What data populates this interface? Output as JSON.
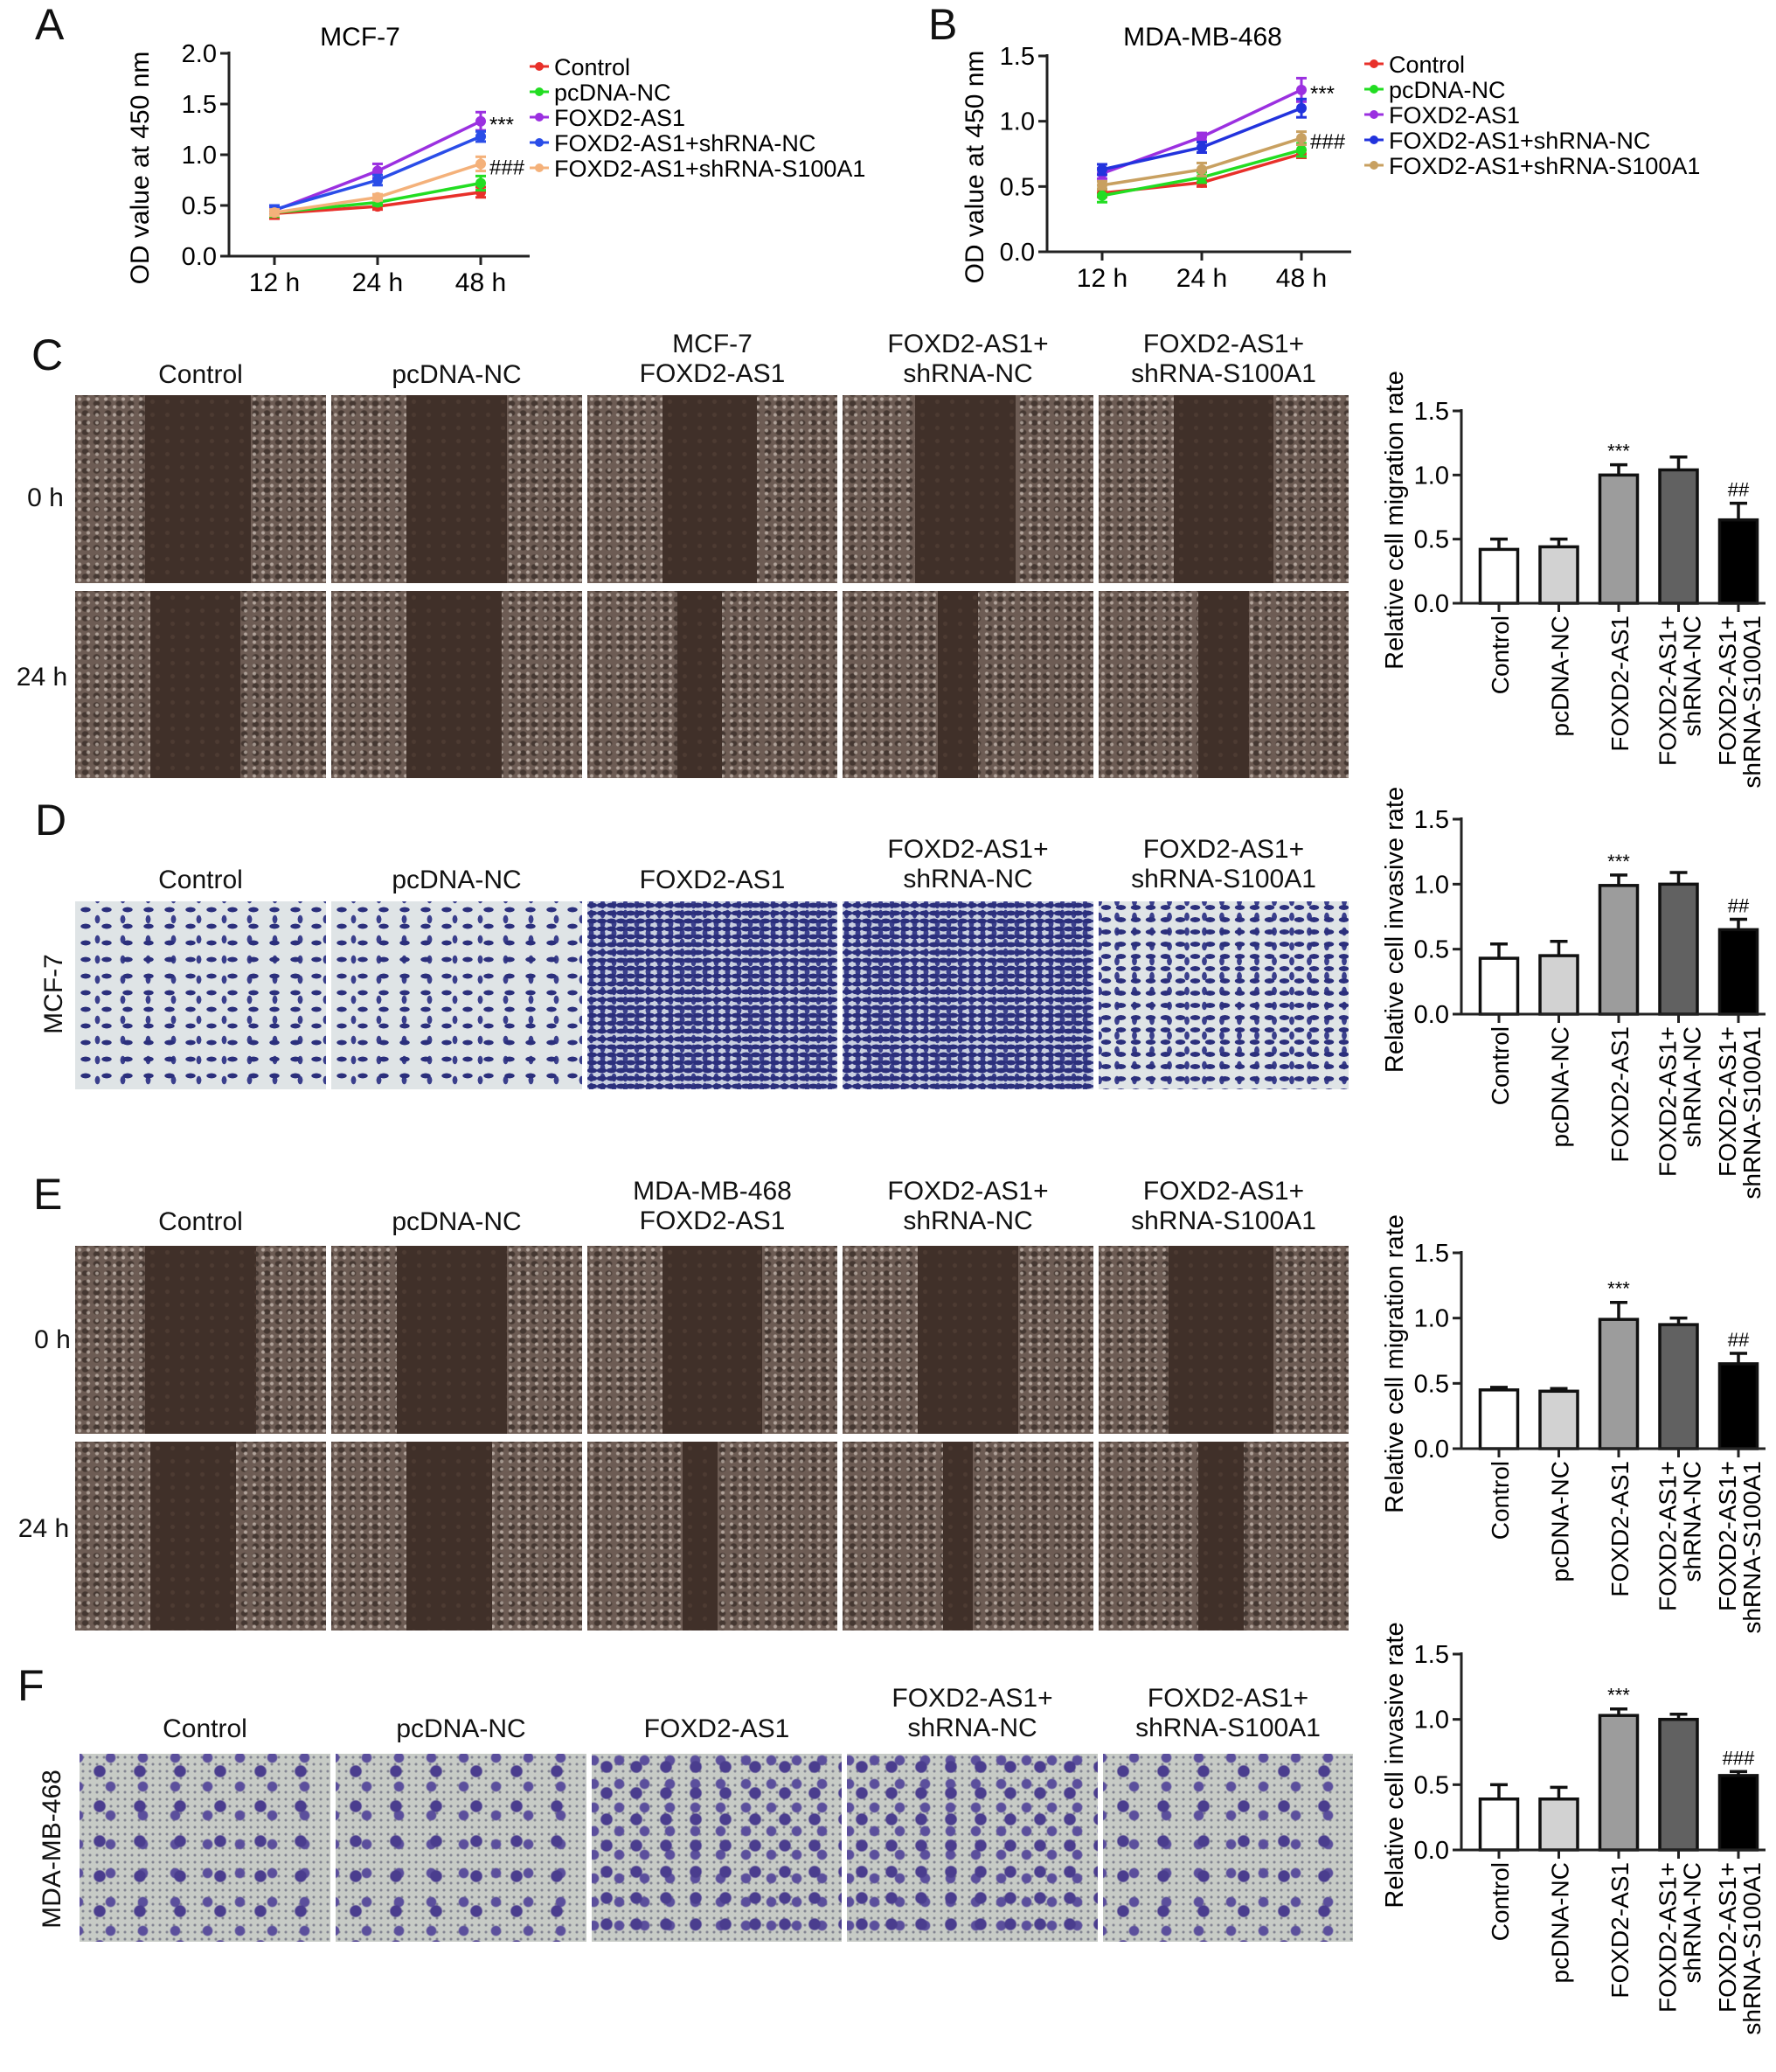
{
  "panel_letters": {
    "A": "A",
    "B": "B",
    "C": "C",
    "D": "D",
    "E": "E",
    "F": "F"
  },
  "photo_panels": [
    {
      "id": "C",
      "headers": [
        [
          "Control"
        ],
        [
          "pcDNA-NC"
        ],
        [
          "MCF-7",
          "FOXD2-AS1"
        ],
        [
          "FOXD2-AS1+",
          "shRNA-NC"
        ],
        [
          "FOXD2-AS1+",
          "shRNA-S100A1"
        ]
      ],
      "row_labels": [
        "0 h",
        "24 h"
      ],
      "side_label": ""
    },
    {
      "id": "D",
      "headers": [
        [
          "Control"
        ],
        [
          "pcDNA-NC"
        ],
        [
          "FOXD2-AS1"
        ],
        [
          "FOXD2-AS1+",
          "shRNA-NC"
        ],
        [
          "FOXD2-AS1+",
          "shRNA-S100A1"
        ]
      ],
      "row_labels": [],
      "side_label": "MCF-7"
    },
    {
      "id": "E",
      "headers": [
        [
          "Control"
        ],
        [
          "pcDNA-NC"
        ],
        [
          "MDA-MB-468",
          "FOXD2-AS1"
        ],
        [
          "FOXD2-AS1+",
          "shRNA-NC"
        ],
        [
          "FOXD2-AS1+",
          "shRNA-S100A1"
        ]
      ],
      "row_labels": [
        "0 h",
        "24 h"
      ],
      "side_label": ""
    },
    {
      "id": "F",
      "headers": [
        [
          "Control"
        ],
        [
          "pcDNA-NC"
        ],
        [
          "FOXD2-AS1"
        ],
        [
          "FOXD2-AS1+",
          "shRNA-NC"
        ],
        [
          "FOXD2-AS1+",
          "shRNA-S100A1"
        ]
      ],
      "row_labels": [],
      "side_label": "MDA-MB-468"
    }
  ],
  "chart_data": [
    {
      "id": "A",
      "type": "line",
      "title": "MCF-7",
      "xlabel": "",
      "ylabel": "OD value at 450 nm",
      "ylim": [
        0,
        2.0
      ],
      "yticks": [
        0,
        0.5,
        1.0,
        1.5,
        2.0
      ],
      "categories": [
        "12 h",
        "24 h",
        "48 h"
      ],
      "series": [
        {
          "name": "Control",
          "color": "#e8302a",
          "values": [
            0.42,
            0.49,
            0.63
          ],
          "errors": [
            0.05,
            0.03,
            0.05
          ]
        },
        {
          "name": "pcDNA-NC",
          "color": "#22dd22",
          "values": [
            0.43,
            0.53,
            0.72
          ],
          "errors": [
            0.04,
            0.03,
            0.07
          ]
        },
        {
          "name": "FOXD2-AS1",
          "color": "#9b30e0",
          "values": [
            0.45,
            0.84,
            1.33
          ],
          "errors": [
            0.04,
            0.07,
            0.09
          ]
        },
        {
          "name": "FOXD2-AS1+shRNA-NC",
          "color": "#2a4de8",
          "values": [
            0.46,
            0.75,
            1.18
          ],
          "errors": [
            0.04,
            0.05,
            0.05
          ]
        },
        {
          "name": "FOXD2-AS1+shRNA-S100A1",
          "color": "#f4b17a",
          "values": [
            0.43,
            0.58,
            0.91
          ],
          "errors": [
            0.03,
            0.03,
            0.07
          ]
        }
      ],
      "annotations": [
        {
          "text": "***",
          "series": "FOXD2-AS1",
          "category": "48 h"
        },
        {
          "text": "###",
          "series": "FOXD2-AS1+shRNA-S100A1",
          "category": "48 h"
        }
      ],
      "legend": "right"
    },
    {
      "id": "B",
      "type": "line",
      "title": "MDA-MB-468",
      "xlabel": "",
      "ylabel": "OD value at 450 nm",
      "ylim": [
        0,
        1.5
      ],
      "yticks": [
        0,
        0.5,
        1.0,
        1.5
      ],
      "categories": [
        "12 h",
        "24 h",
        "48 h"
      ],
      "series": [
        {
          "name": "Control",
          "color": "#e8302a",
          "values": [
            0.45,
            0.53,
            0.75
          ],
          "errors": [
            0.03,
            0.03,
            0.03
          ]
        },
        {
          "name": "pcDNA-NC",
          "color": "#22dd22",
          "values": [
            0.43,
            0.57,
            0.78
          ],
          "errors": [
            0.05,
            0.04,
            0.05
          ]
        },
        {
          "name": "FOXD2-AS1",
          "color": "#9b30e0",
          "values": [
            0.6,
            0.88,
            1.24
          ],
          "errors": [
            0.04,
            0.03,
            0.09
          ]
        },
        {
          "name": "FOXD2-AS1+shRNA-NC",
          "color": "#2233dd",
          "values": [
            0.63,
            0.8,
            1.1
          ],
          "errors": [
            0.04,
            0.04,
            0.07
          ]
        },
        {
          "name": "FOXD2-AS1+shRNA-S100A1",
          "color": "#c8a060",
          "values": [
            0.51,
            0.63,
            0.87
          ],
          "errors": [
            0.03,
            0.05,
            0.05
          ]
        }
      ],
      "annotations": [
        {
          "text": "***",
          "series": "FOXD2-AS1",
          "category": "48 h"
        },
        {
          "text": "###",
          "series": "FOXD2-AS1+shRNA-S100A1",
          "category": "48 h"
        }
      ],
      "legend": "right"
    },
    {
      "id": "C",
      "type": "bar",
      "title": "",
      "xlabel": "",
      "ylabel": "Relative cell migration rate",
      "ylim": [
        0,
        1.5
      ],
      "yticks": [
        0,
        0.5,
        1.0,
        1.5
      ],
      "categories": [
        [
          "Control"
        ],
        [
          "pcDNA-NC"
        ],
        [
          "FOXD2-AS1"
        ],
        [
          "FOXD2-AS1+",
          "shRNA-NC"
        ],
        [
          "FOXD2-AS1+",
          "shRNA-S100A1"
        ]
      ],
      "values": [
        0.42,
        0.44,
        1.0,
        1.04,
        0.65
      ],
      "errors": [
        0.08,
        0.06,
        0.08,
        0.1,
        0.13
      ],
      "colors": [
        "#ffffff",
        "#d2d2d2",
        "#9c9c9c",
        "#616161",
        "#000000"
      ],
      "annotations": [
        "",
        "",
        "***",
        "",
        "##"
      ]
    },
    {
      "id": "D",
      "type": "bar",
      "title": "",
      "xlabel": "",
      "ylabel": "Relative cell invasive rate",
      "ylim": [
        0,
        1.5
      ],
      "yticks": [
        0,
        0.5,
        1.0,
        1.5
      ],
      "categories": [
        [
          "Control"
        ],
        [
          "pcDNA-NC"
        ],
        [
          "FOXD2-AS1"
        ],
        [
          "FOXD2-AS1+",
          "shRNA-NC"
        ],
        [
          "FOXD2-AS1+",
          "shRNA-S100A1"
        ]
      ],
      "values": [
        0.43,
        0.45,
        0.99,
        1.0,
        0.65
      ],
      "errors": [
        0.11,
        0.11,
        0.08,
        0.09,
        0.08
      ],
      "colors": [
        "#ffffff",
        "#d2d2d2",
        "#9c9c9c",
        "#616161",
        "#000000"
      ],
      "annotations": [
        "",
        "",
        "***",
        "",
        "##"
      ]
    },
    {
      "id": "E",
      "type": "bar",
      "title": "",
      "xlabel": "",
      "ylabel": "Relative cell migration rate",
      "ylim": [
        0,
        1.5
      ],
      "yticks": [
        0,
        0.5,
        1.0,
        1.5
      ],
      "categories": [
        [
          "Control"
        ],
        [
          "pcDNA-NC"
        ],
        [
          "FOXD2-AS1"
        ],
        [
          "FOXD2-AS1+",
          "shRNA-NC"
        ],
        [
          "FOXD2-AS1+",
          "shRNA-S100A1"
        ]
      ],
      "values": [
        0.45,
        0.44,
        0.99,
        0.95,
        0.65
      ],
      "errors": [
        0.02,
        0.02,
        0.13,
        0.05,
        0.08
      ],
      "colors": [
        "#ffffff",
        "#d2d2d2",
        "#9c9c9c",
        "#616161",
        "#000000"
      ],
      "annotations": [
        "",
        "",
        "***",
        "",
        "##"
      ]
    },
    {
      "id": "F",
      "type": "bar",
      "title": "",
      "xlabel": "",
      "ylabel": "Relative cell invasive rate",
      "ylim": [
        0,
        1.5
      ],
      "yticks": [
        0,
        0.5,
        1.0,
        1.5
      ],
      "categories": [
        [
          "Control"
        ],
        [
          "pcDNA-NC"
        ],
        [
          "FOXD2-AS1"
        ],
        [
          "FOXD2-AS1+",
          "shRNA-NC"
        ],
        [
          "FOXD2-AS1+",
          "shRNA-S100A1"
        ]
      ],
      "values": [
        0.39,
        0.39,
        1.03,
        1.0,
        0.57
      ],
      "errors": [
        0.11,
        0.09,
        0.05,
        0.04,
        0.03
      ],
      "colors": [
        "#ffffff",
        "#d2d2d2",
        "#9c9c9c",
        "#616161",
        "#000000"
      ],
      "annotations": [
        "",
        "",
        "***",
        "",
        "###"
      ]
    }
  ]
}
